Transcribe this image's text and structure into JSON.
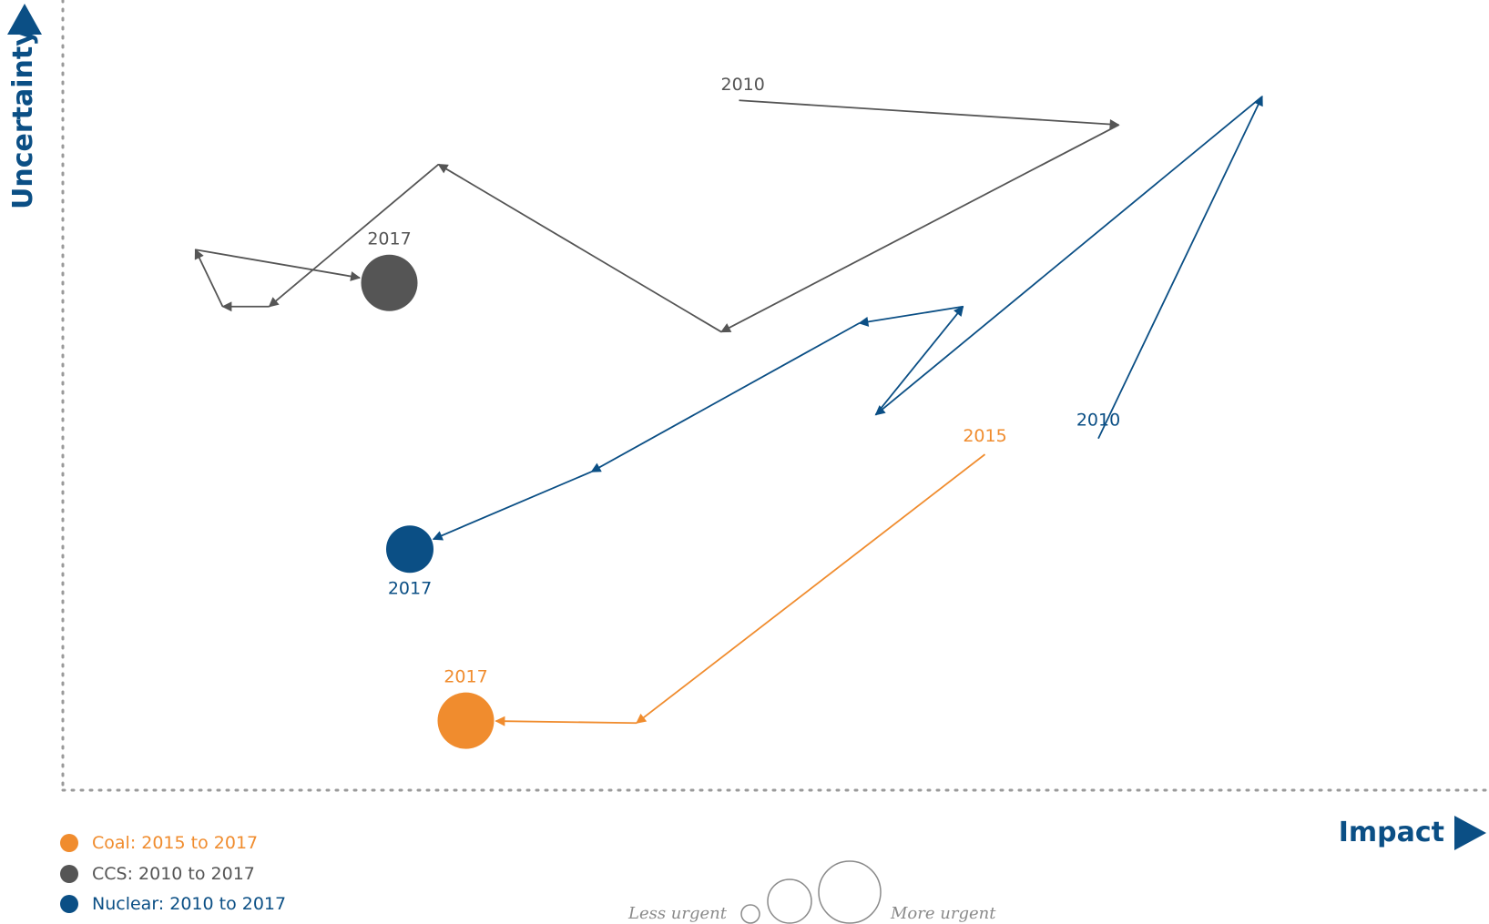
{
  "colors": {
    "axis": "#0b4f85",
    "gridDots": "#9a9a9a"
  },
  "chart_data": {
    "type": "line",
    "xlabel": "Impact",
    "ylabel": "Uncertainty",
    "xlim": [
      0,
      100
    ],
    "ylim": [
      0,
      100
    ],
    "grid": false,
    "legend_position": "bottom-left",
    "series": [
      {
        "name": "Coal: 2015 to 2017",
        "color": "#f08c2e",
        "start_label": "2015",
        "end_label": "2017",
        "points": [
          [
            67.5,
            42.5
          ],
          [
            42.0,
            8.5
          ],
          [
            29.5,
            8.8
          ]
        ],
        "arrow_at": [
          1,
          2
        ],
        "end_size": "large"
      },
      {
        "name": "CCS: 2010 to 2017",
        "color": "#555555",
        "start_label": "2010",
        "end_label": "2017",
        "points": [
          [
            49.5,
            87.3
          ],
          [
            77.3,
            84.2
          ],
          [
            48.2,
            58.0
          ],
          [
            27.5,
            79.2
          ],
          [
            15.1,
            61.2
          ],
          [
            11.7,
            61.2
          ],
          [
            9.7,
            68.4
          ],
          [
            23.9,
            64.2
          ]
        ],
        "arrow_at": [
          1,
          2,
          3,
          4,
          5,
          6,
          7
        ],
        "end_size": "large"
      },
      {
        "name": "Nuclear: 2010 to 2017",
        "color": "#0b4f85",
        "start_label": "2010",
        "end_label": "2017",
        "points": [
          [
            75.8,
            44.5
          ],
          [
            87.8,
            87.8
          ],
          [
            59.5,
            47.5
          ],
          [
            65.9,
            61.2
          ],
          [
            58.3,
            59.1
          ],
          [
            38.7,
            40.3
          ],
          [
            25.4,
            30.5
          ]
        ],
        "arrow_at": [
          1,
          2,
          3,
          4,
          5,
          6
        ],
        "end_size": "medium"
      }
    ],
    "size_legend": {
      "low_label": "Less urgent",
      "high_label": "More urgent"
    }
  }
}
